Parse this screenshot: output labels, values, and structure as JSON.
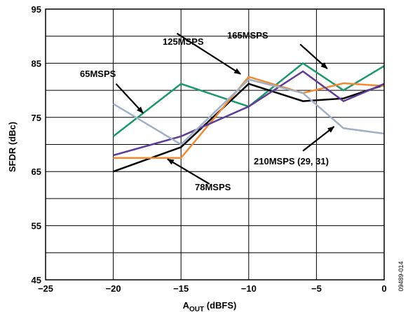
{
  "chart_data": {
    "type": "line",
    "xlabel_main": "A",
    "xlabel_sub": "OUT",
    "xlabel_unit": " (dBFS)",
    "ylabel": "SFDR (dBc)",
    "xlim": [
      -25,
      0
    ],
    "ylim": [
      45,
      95
    ],
    "xticks": [
      -25,
      -20,
      -15,
      -10,
      -5,
      0
    ],
    "yticks": [
      45,
      55,
      65,
      75,
      85,
      95
    ],
    "xtick_labels": [
      "−25",
      "−20",
      "−15",
      "−10",
      "−5",
      "0"
    ],
    "ytick_labels": [
      "45",
      "55",
      "65",
      "75",
      "85",
      "95"
    ],
    "grid": true,
    "figure_id": "09489-014",
    "series": [
      {
        "name": "65MSPS",
        "color": "#1a9a6a",
        "x": [
          -20,
          -15,
          -10,
          -6,
          -3,
          0
        ],
        "y": [
          71.5,
          81.2,
          77.0,
          85.0,
          80.0,
          84.5
        ]
      },
      {
        "name": "78MSPS",
        "color": "#000000",
        "x": [
          -20,
          -15,
          -10,
          -6,
          -3,
          0
        ],
        "y": [
          65.0,
          69.5,
          81.2,
          78.0,
          78.5,
          81.0
        ]
      },
      {
        "name": "125MSPS",
        "color": "#f08a30",
        "x": [
          -20,
          -15,
          -10,
          -6,
          -3,
          0
        ],
        "y": [
          67.5,
          67.5,
          82.5,
          79.5,
          81.3,
          80.8
        ]
      },
      {
        "name": "165MSPS",
        "color": "#5e3c98",
        "x": [
          -20,
          -15,
          -10,
          -6,
          -3,
          0
        ],
        "y": [
          68.0,
          71.5,
          77.0,
          83.5,
          78.0,
          81.2
        ]
      },
      {
        "name": "210MSPS (29, 31)",
        "color": "#9fb0c8",
        "x": [
          -20,
          -15,
          -10,
          -6,
          -3,
          0
        ],
        "y": [
          77.5,
          70.0,
          82.0,
          79.5,
          73.0,
          72.0
        ]
      }
    ],
    "annotations": [
      {
        "label": "125MSPS",
        "arrow_from": [
          -15.3,
          90.5
        ],
        "arrow_to": [
          -10.6,
          83.0
        ]
      },
      {
        "label": "165MSPS",
        "arrow_from": [
          -6.2,
          88.5
        ],
        "arrow_to": [
          -4.2,
          84.0
        ]
      },
      {
        "label": "65MSPS",
        "arrow_from": [
          -19.8,
          81.2
        ],
        "arrow_to": [
          -17.8,
          75.8
        ]
      },
      {
        "label": "210MSPS (29, 31)",
        "arrow_from": [
          -6.0,
          68.8
        ],
        "arrow_to": [
          -3.7,
          73.3
        ]
      },
      {
        "label": "78MSPS",
        "arrow_from": [
          -12.9,
          62.7
        ],
        "arrow_to": [
          -16.0,
          67.3
        ]
      }
    ]
  }
}
